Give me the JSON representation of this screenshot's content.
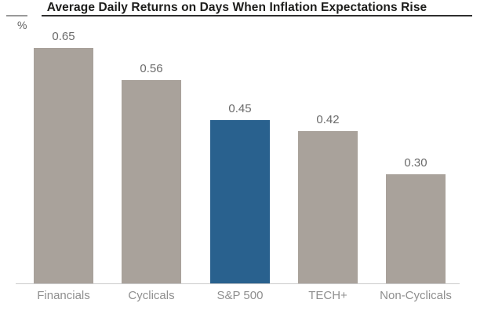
{
  "chart_data": {
    "type": "bar",
    "title": "Average Daily Returns on Days When Inflation Expectations Rise",
    "unit_label": "%",
    "xlabel": "",
    "ylabel": "",
    "categories": [
      "Financials",
      "Cyclicals",
      "S&P 500",
      "TECH+",
      "Non-Cyclicals"
    ],
    "values": [
      0.65,
      0.56,
      0.45,
      0.42,
      0.3
    ],
    "value_labels": [
      "0.65",
      "0.56",
      "0.45",
      "0.42",
      "0.30"
    ],
    "highlighted_category": "S&P 500",
    "ylim": [
      0,
      0.7
    ],
    "grid": false,
    "legend": false,
    "colors": {
      "bar_default": "#a9a29b",
      "bar_highlight": "#29618e",
      "title_text": "#1d1d1b",
      "title_rule": "#2e2e2e",
      "axis_tick_rule": "#999999",
      "unit_label_text": "#5f5f5f",
      "value_label_text": "#6a6a6a",
      "category_label_text": "#8f8f8f",
      "axis_line": "#cbcbcb",
      "background": "#ffffff"
    }
  }
}
